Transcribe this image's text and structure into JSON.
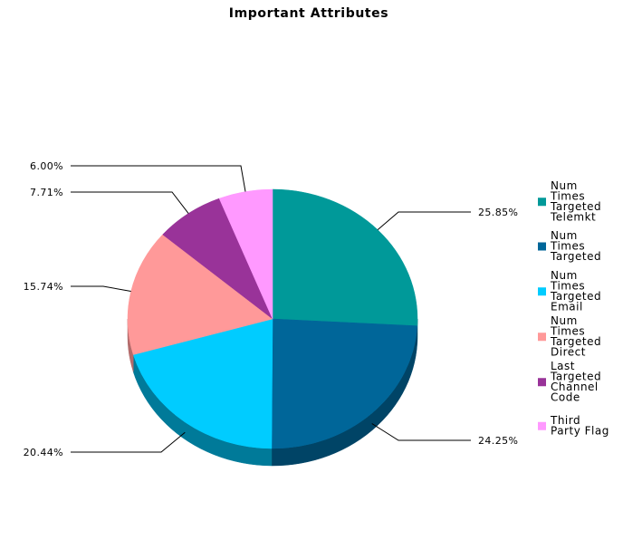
{
  "chart_data": {
    "type": "pie",
    "title": "Important Attributes",
    "slices": [
      {
        "label": "Num Times Targeted Telemkt",
        "legend_lines": [
          "Num",
          "Times",
          "Targeted",
          "Telemkt"
        ],
        "value": 25.85,
        "value_label": "25.85%",
        "color": "#009999",
        "side_color": "#006b6b"
      },
      {
        "label": "Num Times Targeted",
        "legend_lines": [
          "Num",
          "Times",
          "Targeted"
        ],
        "value": 24.25,
        "value_label": "24.25%",
        "color": "#006699",
        "side_color": "#004466"
      },
      {
        "label": "Num Times Targeted Email",
        "legend_lines": [
          "Num",
          "Times",
          "Targeted",
          "Email"
        ],
        "value": 20.44,
        "value_label": "20.44%",
        "color": "#00ccff",
        "side_color": "#007a99"
      },
      {
        "label": "Num Times Targeted Direct",
        "legend_lines": [
          "Num",
          "Times",
          "Targeted",
          "Direct"
        ],
        "value": 15.74,
        "value_label": "15.74%",
        "color": "#ff9999",
        "side_color": "#b36b6b"
      },
      {
        "label": "Last Targeted Channel Code",
        "legend_lines": [
          "Last",
          "Targeted",
          "Channel",
          "Code"
        ],
        "value": 7.71,
        "value_label": "7.71%",
        "color": "#993399",
        "side_color": "#6b246b"
      },
      {
        "label": "Third Party Flag",
        "legend_lines": [
          "Third",
          "Party Flag"
        ],
        "value": 6.0,
        "value_label": "6.00%",
        "color": "#ff99ff",
        "side_color": "#b36bb3"
      }
    ],
    "start_angle": "12 o'clock",
    "direction": "clockwise",
    "legend_position": "right",
    "style": "3d"
  }
}
